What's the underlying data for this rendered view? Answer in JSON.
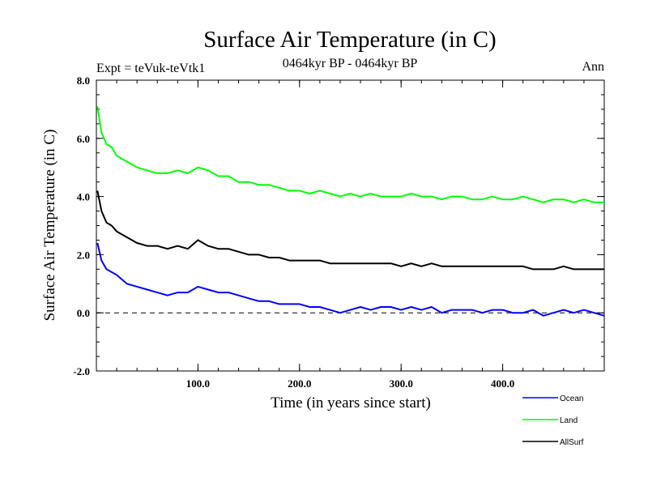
{
  "chart_data": {
    "type": "line",
    "title": "Surface Air Temperature (in C)",
    "subtitle": "0464kyr BP - 0464kyr BP",
    "left_label": "Expt = teVuk-teVtk1",
    "right_label": "Ann",
    "xlabel": "Time (in years since start)",
    "ylabel": "Surface Air Temperature (in C)",
    "xlim": [
      0,
      500
    ],
    "ylim": [
      -2.0,
      8.0
    ],
    "x_ticks": [
      100,
      200,
      300,
      400
    ],
    "x_tick_labels": [
      "100.0",
      "200.0",
      "300.0",
      "400.0"
    ],
    "y_ticks": [
      -2,
      0,
      2,
      4,
      6,
      8
    ],
    "y_tick_labels": [
      "-2.0",
      "0.0",
      "2.0",
      "4.0",
      "6.0",
      "8.0"
    ],
    "zero_line": {
      "y": 0,
      "style": "dashed"
    },
    "grid": false,
    "legend_position": "bottom-right",
    "series": [
      {
        "name": "Ocean",
        "color": "#0000ff",
        "x": [
          1,
          5,
          10,
          15,
          20,
          30,
          40,
          50,
          60,
          70,
          80,
          90,
          100,
          110,
          120,
          130,
          140,
          150,
          160,
          170,
          180,
          190,
          200,
          210,
          220,
          230,
          240,
          250,
          260,
          270,
          280,
          290,
          300,
          310,
          320,
          330,
          340,
          350,
          360,
          370,
          380,
          390,
          400,
          410,
          420,
          430,
          440,
          450,
          460,
          470,
          480,
          490,
          500
        ],
        "values": [
          2.4,
          1.8,
          1.5,
          1.4,
          1.3,
          1.0,
          0.9,
          0.8,
          0.7,
          0.6,
          0.7,
          0.7,
          0.9,
          0.8,
          0.7,
          0.7,
          0.6,
          0.5,
          0.4,
          0.4,
          0.3,
          0.3,
          0.3,
          0.2,
          0.2,
          0.1,
          0.0,
          0.1,
          0.2,
          0.1,
          0.2,
          0.2,
          0.1,
          0.2,
          0.1,
          0.2,
          0.0,
          0.1,
          0.1,
          0.1,
          0.0,
          0.1,
          0.1,
          0.0,
          0.0,
          0.1,
          -0.1,
          0.0,
          0.1,
          0.0,
          0.1,
          0.0,
          -0.1
        ]
      },
      {
        "name": "Land",
        "color": "#00ff00",
        "x": [
          1,
          5,
          10,
          15,
          20,
          30,
          40,
          50,
          60,
          70,
          80,
          90,
          100,
          110,
          120,
          130,
          140,
          150,
          160,
          170,
          180,
          190,
          200,
          210,
          220,
          230,
          240,
          250,
          260,
          270,
          280,
          290,
          300,
          310,
          320,
          330,
          340,
          350,
          360,
          370,
          380,
          390,
          400,
          410,
          420,
          430,
          440,
          450,
          460,
          470,
          480,
          490,
          500
        ],
        "values": [
          7.1,
          6.2,
          5.8,
          5.7,
          5.4,
          5.2,
          5.0,
          4.9,
          4.8,
          4.8,
          4.9,
          4.8,
          5.0,
          4.9,
          4.7,
          4.7,
          4.5,
          4.5,
          4.4,
          4.4,
          4.3,
          4.2,
          4.2,
          4.1,
          4.2,
          4.1,
          4.0,
          4.1,
          4.0,
          4.1,
          4.0,
          4.0,
          4.0,
          4.1,
          4.0,
          4.0,
          3.9,
          4.0,
          4.0,
          3.9,
          3.9,
          4.0,
          3.9,
          3.9,
          4.0,
          3.9,
          3.8,
          3.9,
          3.9,
          3.8,
          3.9,
          3.8,
          3.8
        ]
      },
      {
        "name": "AllSurf",
        "color": "#000000",
        "x": [
          1,
          5,
          10,
          15,
          20,
          30,
          40,
          50,
          60,
          70,
          80,
          90,
          100,
          110,
          120,
          130,
          140,
          150,
          160,
          170,
          180,
          190,
          200,
          210,
          220,
          230,
          240,
          250,
          260,
          270,
          280,
          290,
          300,
          310,
          320,
          330,
          340,
          350,
          360,
          370,
          380,
          390,
          400,
          410,
          420,
          430,
          440,
          450,
          460,
          470,
          480,
          490,
          500
        ],
        "values": [
          4.2,
          3.5,
          3.1,
          3.0,
          2.8,
          2.6,
          2.4,
          2.3,
          2.3,
          2.2,
          2.3,
          2.2,
          2.5,
          2.3,
          2.2,
          2.2,
          2.1,
          2.0,
          2.0,
          1.9,
          1.9,
          1.8,
          1.8,
          1.8,
          1.8,
          1.7,
          1.7,
          1.7,
          1.7,
          1.7,
          1.7,
          1.7,
          1.6,
          1.7,
          1.6,
          1.7,
          1.6,
          1.6,
          1.6,
          1.6,
          1.6,
          1.6,
          1.6,
          1.6,
          1.6,
          1.5,
          1.5,
          1.5,
          1.6,
          1.5,
          1.5,
          1.5,
          1.5
        ]
      }
    ]
  }
}
